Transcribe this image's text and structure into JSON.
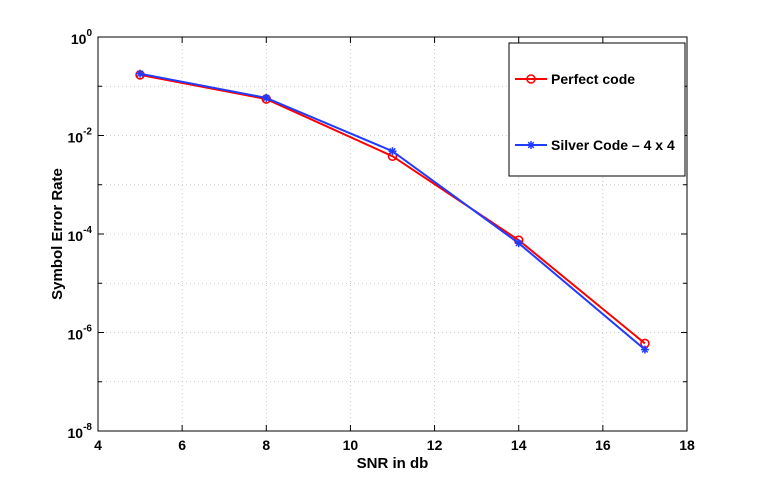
{
  "chart_data": {
    "type": "line",
    "title": "",
    "xlabel": "SNR in db",
    "ylabel": "Symbol Error Rate",
    "xlim": [
      4,
      18
    ],
    "ylim": [
      1e-08,
      1
    ],
    "yscale": "log",
    "grid": true,
    "legend_position": "top-right",
    "xticks": [
      4,
      6,
      8,
      10,
      12,
      14,
      16,
      18
    ],
    "yticks": [
      {
        "value": 1.0,
        "base": "10",
        "exp": "0"
      },
      {
        "value": 0.01,
        "base": "10",
        "exp": "-2"
      },
      {
        "value": 0.0001,
        "base": "10",
        "exp": "-4"
      },
      {
        "value": 1e-06,
        "base": "10",
        "exp": "-6"
      },
      {
        "value": 1e-08,
        "base": "10",
        "exp": "-8"
      }
    ],
    "series": [
      {
        "name": "Perfect code",
        "color": "#ff0000",
        "marker": "circle",
        "x": [
          5,
          8,
          11,
          14,
          17
        ],
        "values": [
          0.17,
          0.055,
          0.0038,
          7.5e-05,
          6e-07
        ]
      },
      {
        "name": "Silver Code – 4 x 4",
        "color": "#1f3cff",
        "marker": "asterisk",
        "x": [
          5,
          8,
          11,
          14,
          17
        ],
        "values": [
          0.18,
          0.058,
          0.0048,
          6.5e-05,
          4.5e-07
        ]
      }
    ]
  }
}
